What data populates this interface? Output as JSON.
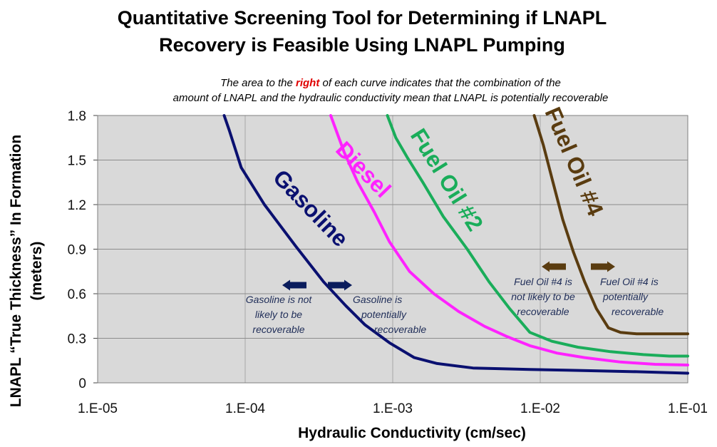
{
  "chart_data": {
    "type": "line",
    "title_lines": [
      "Quantitative Screening Tool for Determining if LNAPL",
      "Recovery is Feasible Using LNAPL Pumping"
    ],
    "subtitle": {
      "line1_before": "The area to the ",
      "line1_highlight": "right",
      "line1_after": " of each curve indicates that the combination of the",
      "line2": "amount of LNAPL and the hydraulic conductivity mean that LNAPL is potentially recoverable"
    },
    "xlabel": "Hydraulic Conductivity (cm/sec)",
    "ylabel_lines": [
      "LNAPL “True Thickness” In Formation",
      "(meters)"
    ],
    "x_scale": "log",
    "xlim": [
      1e-05,
      0.1
    ],
    "ylim": [
      0,
      1.8
    ],
    "x_ticks": [
      {
        "value": 1e-05,
        "label": "1.E-05"
      },
      {
        "value": 0.0001,
        "label": "1.E-04"
      },
      {
        "value": 0.001,
        "label": "1.E-03"
      },
      {
        "value": 0.01,
        "label": "1.E-02"
      },
      {
        "value": 0.1,
        "label": "1.E-01"
      }
    ],
    "y_ticks": [
      {
        "value": 0,
        "label": "0"
      },
      {
        "value": 0.3,
        "label": "0.3"
      },
      {
        "value": 0.6,
        "label": "0.6"
      },
      {
        "value": 0.9,
        "label": "0.9"
      },
      {
        "value": 1.2,
        "label": "1.2"
      },
      {
        "value": 1.5,
        "label": "1.5"
      },
      {
        "value": 1.8,
        "label": "1.8"
      }
    ],
    "grid": true,
    "background_color": "#d9d9d9",
    "series": [
      {
        "name": "Gasoline",
        "color": "#0a1070",
        "x": [
          7.2e-05,
          7.8e-05,
          9.4e-05,
          0.000135,
          0.00022,
          0.00034,
          0.00048,
          0.00065,
          0.00095,
          0.0014,
          0.002,
          0.0035,
          0.0055,
          0.0085,
          0.015,
          0.025,
          0.045,
          0.1
        ],
        "y": [
          1.8,
          1.7,
          1.45,
          1.2,
          0.92,
          0.68,
          0.52,
          0.39,
          0.27,
          0.17,
          0.13,
          0.1,
          0.095,
          0.09,
          0.085,
          0.08,
          0.075,
          0.065
        ]
      },
      {
        "name": "Diesel",
        "color": "#ff22ff",
        "x": [
          0.00038,
          0.00047,
          0.00058,
          0.00075,
          0.00095,
          0.0013,
          0.0019,
          0.0028,
          0.0042,
          0.006,
          0.0085,
          0.013,
          0.02,
          0.035,
          0.06,
          0.1
        ],
        "y": [
          1.8,
          1.55,
          1.35,
          1.15,
          0.95,
          0.75,
          0.6,
          0.48,
          0.38,
          0.31,
          0.25,
          0.2,
          0.17,
          0.14,
          0.125,
          0.12
        ]
      },
      {
        "name": "Fuel Oil #2",
        "color": "#1aad5a",
        "x": [
          0.00092,
          0.00105,
          0.00125,
          0.0016,
          0.0022,
          0.0032,
          0.0045,
          0.0062,
          0.0085,
          0.012,
          0.018,
          0.03,
          0.05,
          0.075,
          0.1
        ],
        "y": [
          1.8,
          1.65,
          1.52,
          1.35,
          1.12,
          0.9,
          0.68,
          0.5,
          0.34,
          0.28,
          0.24,
          0.21,
          0.19,
          0.18,
          0.18
        ]
      },
      {
        "name": "Fuel Oil #4",
        "color": "#5a3c10",
        "x": [
          0.0091,
          0.0105,
          0.0122,
          0.0142,
          0.0168,
          0.02,
          0.024,
          0.029,
          0.035,
          0.045,
          0.06,
          0.08,
          0.1
        ],
        "y": [
          1.8,
          1.6,
          1.35,
          1.1,
          0.88,
          0.68,
          0.5,
          0.37,
          0.34,
          0.33,
          0.33,
          0.33,
          0.33
        ]
      }
    ],
    "annotations": [
      {
        "series": "Gasoline",
        "not_recoverable": [
          "Gasoline is not",
          "likely to be",
          "recoverable"
        ],
        "potentially_recoverable": [
          "Gasoline is",
          "potentially",
          "recoverable"
        ]
      },
      {
        "series": "Fuel Oil #4",
        "not_recoverable": [
          "Fuel Oil #4 is",
          "not likely to be",
          "recoverable"
        ],
        "potentially_recoverable": [
          "Fuel Oil #4 is",
          "potentially",
          "recoverable"
        ]
      }
    ]
  }
}
